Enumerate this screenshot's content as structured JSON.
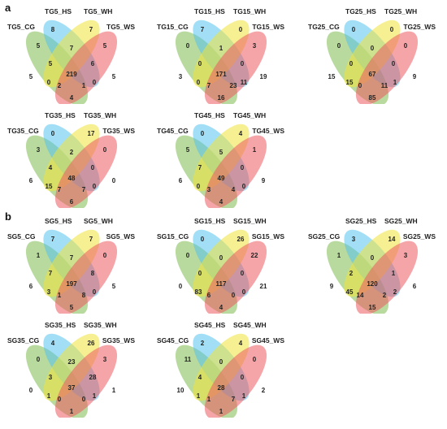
{
  "panels": [
    {
      "letter": "a"
    },
    {
      "letter": "b"
    }
  ],
  "colors": {
    "set1": "#7dbb4f",
    "set2": "#55c2ec",
    "set3": "#f0e43a",
    "set4": "#ec5a61",
    "text": "#222222"
  },
  "diagrams": [
    {
      "labels": [
        "TG5_CG",
        "TG5_HS",
        "TG5_WH",
        "TG5_WS"
      ],
      "counts": {
        "g": "5",
        "b": "8",
        "y": "7",
        "r": "5",
        "gb": "5",
        "by": "7",
        "yr": "5",
        "gr": "4",
        "gby": "5",
        "byr": "6",
        "gyr": "1",
        "gbr": "2",
        "all": "219",
        "br": "0",
        "gy": "0"
      }
    },
    {
      "labels": [
        "TG15_CG",
        "TG15_HS",
        "TG15_WH",
        "TG15_WS"
      ],
      "counts": {
        "g": "3",
        "b": "7",
        "y": "0",
        "r": "19",
        "gb": "0",
        "by": "1",
        "yr": "3",
        "gr": "16",
        "gby": "0",
        "byr": "0",
        "gyr": "23",
        "gbr": "7",
        "all": "171",
        "br": "11",
        "gy": "0"
      }
    },
    {
      "labels": [
        "TG25_CG",
        "TG25_HS",
        "TG25_WH",
        "TG25_WS"
      ],
      "counts": {
        "g": "15",
        "b": "0",
        "y": "0",
        "r": "9",
        "gb": "0",
        "by": "0",
        "yr": "0",
        "gr": "85",
        "gby": "0",
        "byr": "0",
        "gyr": "11",
        "gbr": "0",
        "all": "67",
        "br": "1",
        "gy": "15"
      }
    },
    {
      "labels": [
        "TG35_CG",
        "TG35_HS",
        "TG35_WH",
        "TG35_WS"
      ],
      "counts": {
        "g": "6",
        "b": "0",
        "y": "17",
        "r": "0",
        "gb": "3",
        "by": "2",
        "yr": "0",
        "gr": "6",
        "gby": "4",
        "byr": "0",
        "gyr": "7",
        "gbr": "7",
        "all": "48",
        "br": "0",
        "gy": "15"
      }
    },
    {
      "labels": [
        "TG45_CG",
        "TG45_HS",
        "TG45_WH",
        "TG45_WS"
      ],
      "counts": {
        "g": "6",
        "b": "0",
        "y": "4",
        "r": "9",
        "gb": "5",
        "by": "5",
        "yr": "1",
        "gr": "4",
        "gby": "7",
        "byr": "0",
        "gyr": "4",
        "gbr": "3",
        "all": "49",
        "br": "0",
        "gy": "0"
      }
    },
    {
      "labels": [
        "SG5_CG",
        "SG5_HS",
        "SG5_WH",
        "SG5_WS"
      ],
      "counts": {
        "g": "6",
        "b": "7",
        "y": "7",
        "r": "5",
        "gb": "1",
        "by": "7",
        "yr": "0",
        "gr": "5",
        "gby": "7",
        "byr": "8",
        "gyr": "8",
        "gbr": "1",
        "all": "197",
        "br": "0",
        "gy": "3"
      }
    },
    {
      "labels": [
        "SG15_CG",
        "SG15_HS",
        "SG15_WH",
        "SG15_WS"
      ],
      "counts": {
        "g": "0",
        "b": "0",
        "y": "26",
        "r": "21",
        "gb": "0",
        "by": "0",
        "yr": "22",
        "gr": "4",
        "gby": "0",
        "byr": "0",
        "gyr": "0",
        "gbr": "6",
        "all": "117",
        "br": "0",
        "gy": "83"
      }
    },
    {
      "labels": [
        "SG25_CG",
        "SG25_HS",
        "SG25_WH",
        "SG25_WS"
      ],
      "counts": {
        "g": "9",
        "b": "3",
        "y": "14",
        "r": "6",
        "gb": "1",
        "by": "0",
        "yr": "3",
        "gr": "15",
        "gby": "2",
        "byr": "1",
        "gyr": "2",
        "gbr": "14",
        "all": "120",
        "br": "2",
        "gy": "45"
      }
    },
    {
      "labels": [
        "SG35_CG",
        "SG35_HS",
        "SG35_WH",
        "SG35_WS"
      ],
      "counts": {
        "g": "0",
        "b": "4",
        "y": "26",
        "r": "1",
        "gb": "0",
        "by": "23",
        "yr": "3",
        "gr": "1",
        "gby": "3",
        "byr": "28",
        "gyr": "0",
        "gbr": "0",
        "all": "37",
        "br": "1",
        "gy": "1"
      }
    },
    {
      "labels": [
        "SG45_CG",
        "SG45_HS",
        "SG45_WH",
        "SG45_WS"
      ],
      "counts": {
        "g": "10",
        "b": "2",
        "y": "4",
        "r": "2",
        "gb": "11",
        "by": "0",
        "yr": "0",
        "gr": "1",
        "gby": "4",
        "byr": "0",
        "gyr": "7",
        "gbr": "1",
        "all": "28",
        "br": "1",
        "gy": "1"
      }
    }
  ]
}
